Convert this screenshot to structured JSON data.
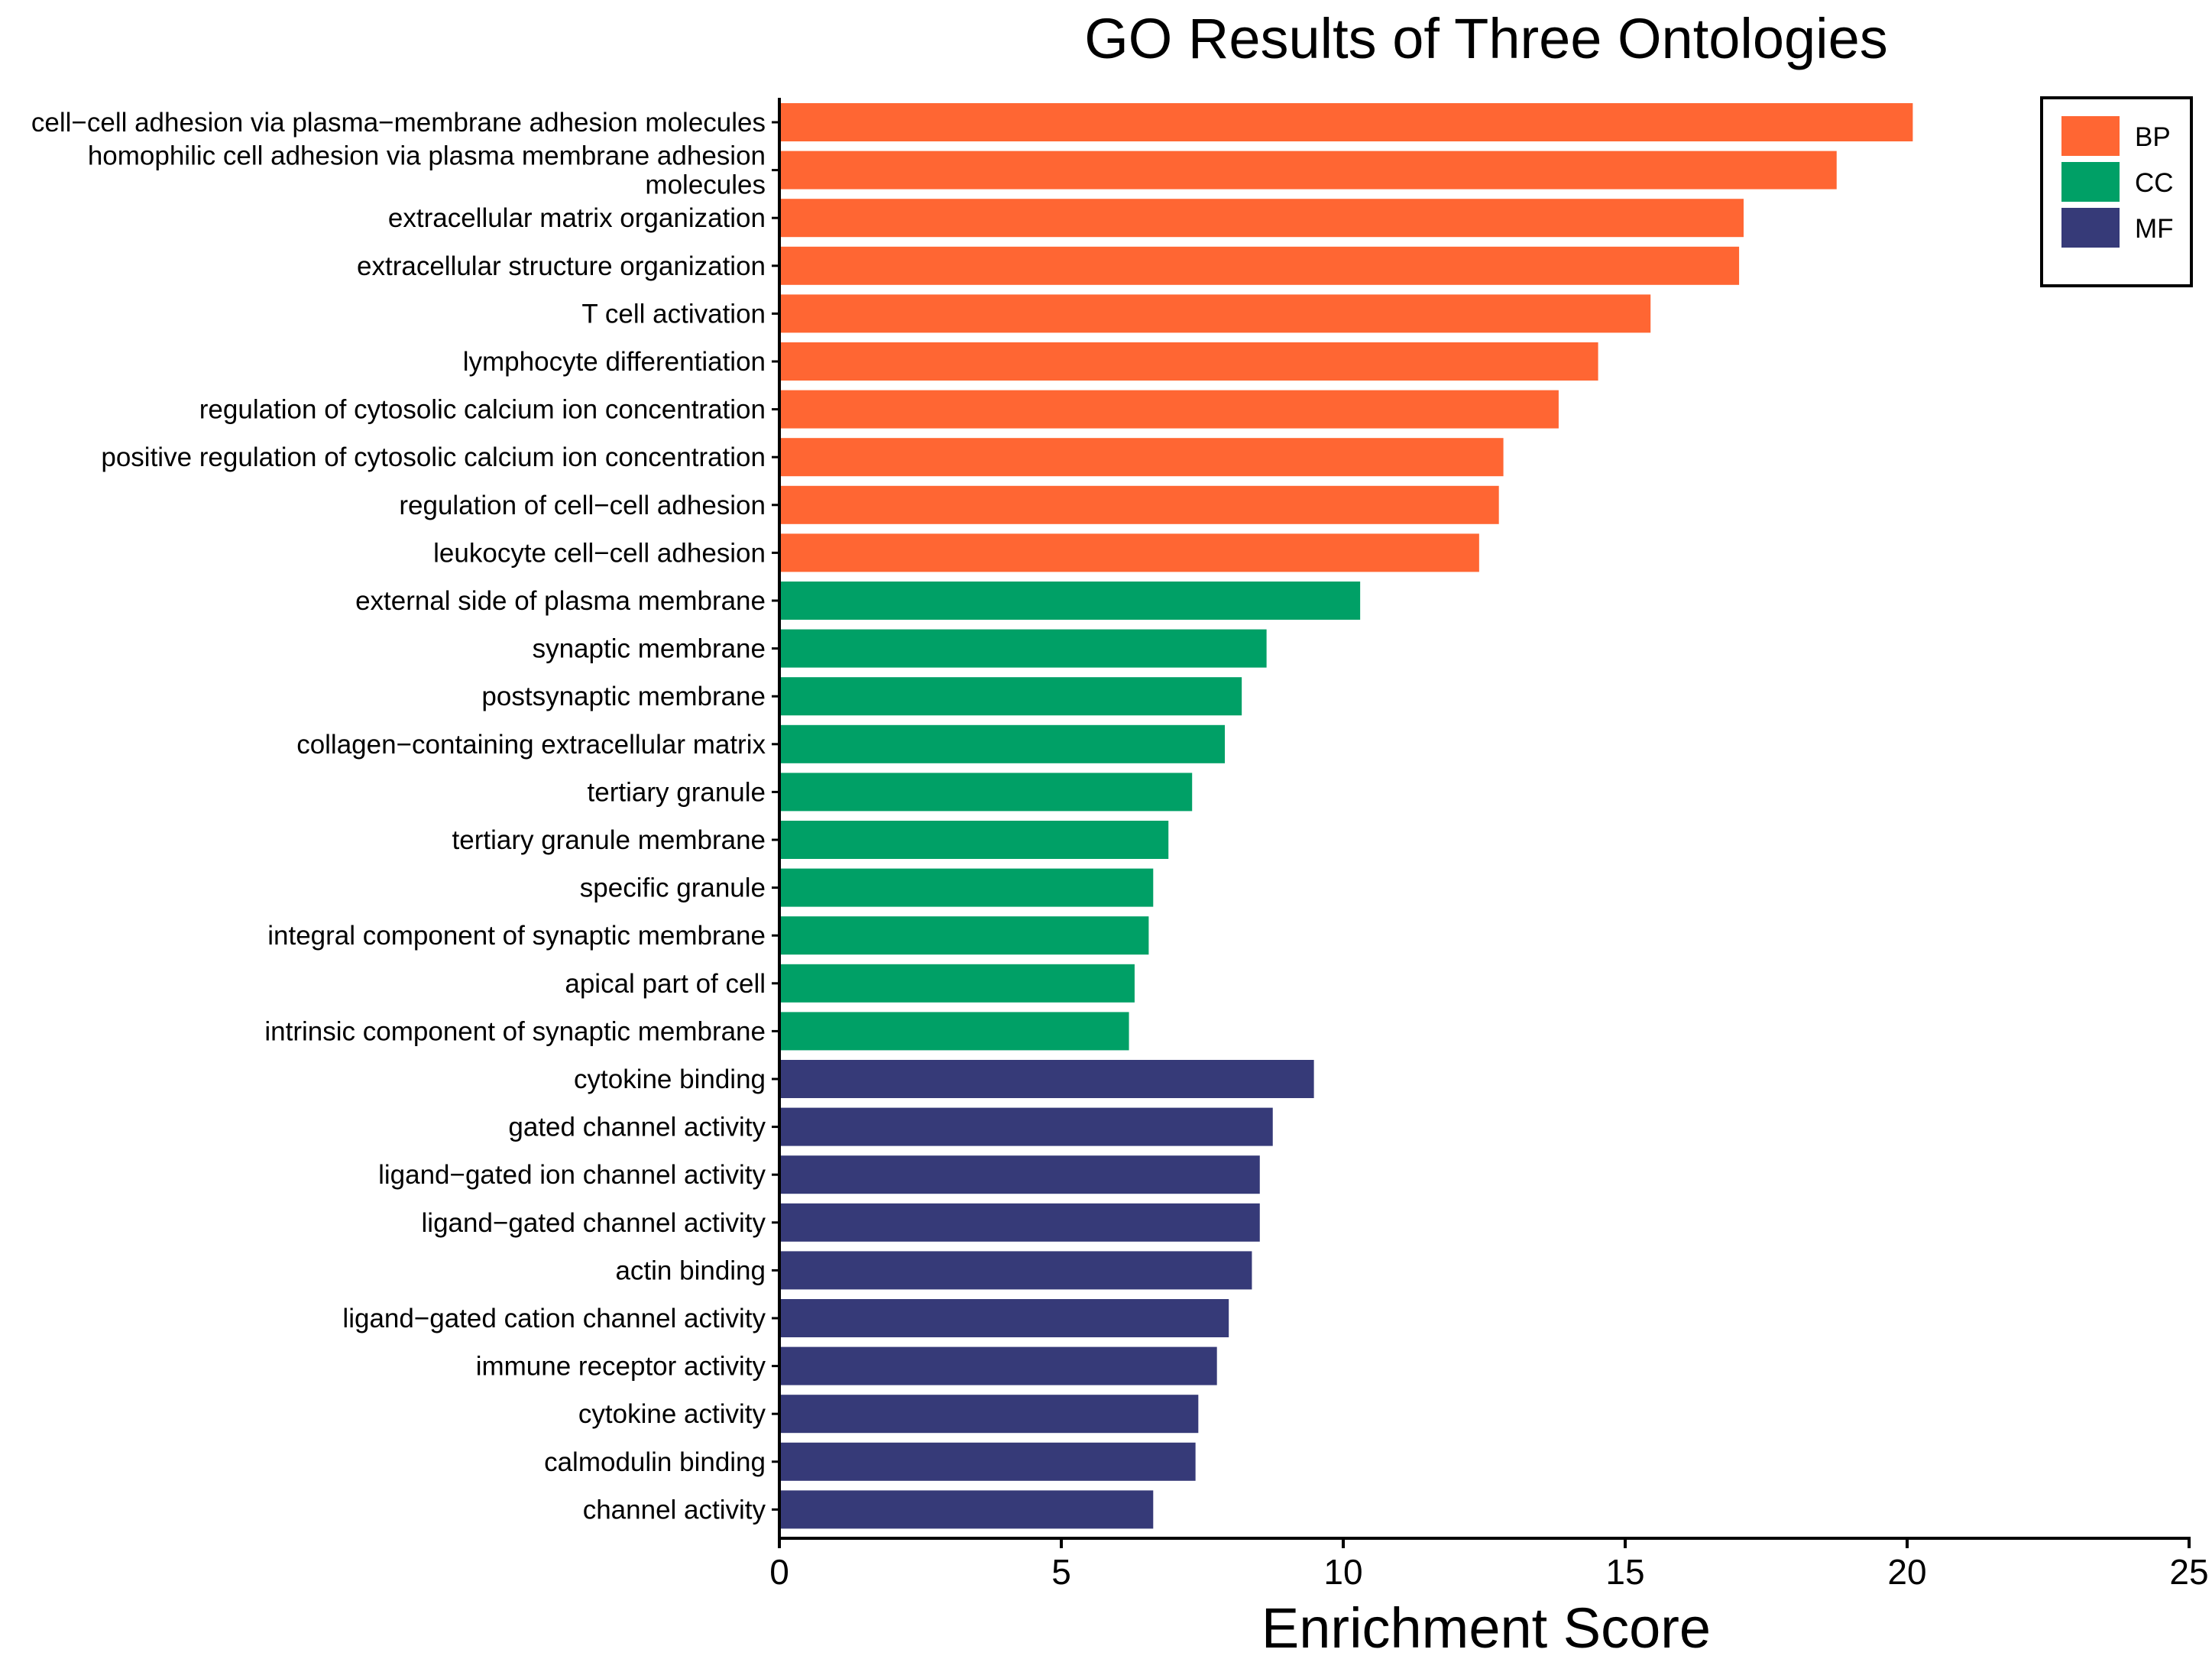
{
  "chart_data": {
    "type": "bar",
    "orientation": "horizontal",
    "title": "GO Results of Three Ontologies",
    "xlabel": "Enrichment Score",
    "ylabel": "",
    "xlim": [
      0,
      25
    ],
    "xticks": [
      0,
      5,
      10,
      15,
      20,
      25
    ],
    "grid": false,
    "legend_position": "top-right",
    "colors": {
      "BP": "#FF6633",
      "CC": "#00A066",
      "MF": "#363A78"
    },
    "legend": [
      "BP",
      "CC",
      "MF"
    ],
    "bars": [
      {
        "label": [
          "cell−cell adhesion via plasma−membrane adhesion molecules"
        ],
        "value": 20.1,
        "group": "BP"
      },
      {
        "label": [
          "homophilic cell adhesion via plasma membrane adhesion",
          "molecules"
        ],
        "value": 18.75,
        "group": "BP"
      },
      {
        "label": [
          "extracellular matrix organization"
        ],
        "value": 17.1,
        "group": "BP"
      },
      {
        "label": [
          "extracellular structure organization"
        ],
        "value": 17.02,
        "group": "BP"
      },
      {
        "label": [
          "T cell activation"
        ],
        "value": 15.45,
        "group": "BP"
      },
      {
        "label": [
          "lymphocyte differentiation"
        ],
        "value": 14.52,
        "group": "BP"
      },
      {
        "label": [
          "regulation of cytosolic calcium ion concentration"
        ],
        "value": 13.82,
        "group": "BP"
      },
      {
        "label": [
          "positive regulation of cytosolic calcium ion concentration"
        ],
        "value": 12.84,
        "group": "BP"
      },
      {
        "label": [
          "regulation of cell−cell adhesion"
        ],
        "value": 12.76,
        "group": "BP"
      },
      {
        "label": [
          "leukocyte cell−cell adhesion"
        ],
        "value": 12.41,
        "group": "BP"
      },
      {
        "label": [
          "external side of plasma membrane"
        ],
        "value": 10.3,
        "group": "CC"
      },
      {
        "label": [
          "synaptic membrane"
        ],
        "value": 8.64,
        "group": "CC"
      },
      {
        "label": [
          "postsynaptic membrane"
        ],
        "value": 8.2,
        "group": "CC"
      },
      {
        "label": [
          "collagen−containing extracellular matrix"
        ],
        "value": 7.9,
        "group": "CC"
      },
      {
        "label": [
          "tertiary granule"
        ],
        "value": 7.32,
        "group": "CC"
      },
      {
        "label": [
          "tertiary granule membrane"
        ],
        "value": 6.9,
        "group": "CC"
      },
      {
        "label": [
          "specific granule"
        ],
        "value": 6.63,
        "group": "CC"
      },
      {
        "label": [
          "integral component of synaptic membrane"
        ],
        "value": 6.55,
        "group": "CC"
      },
      {
        "label": [
          "apical part of cell"
        ],
        "value": 6.3,
        "group": "CC"
      },
      {
        "label": [
          "intrinsic component of synaptic membrane"
        ],
        "value": 6.2,
        "group": "CC"
      },
      {
        "label": [
          "cytokine binding"
        ],
        "value": 9.48,
        "group": "MF"
      },
      {
        "label": [
          "gated channel activity"
        ],
        "value": 8.75,
        "group": "MF"
      },
      {
        "label": [
          "ligand−gated ion channel activity"
        ],
        "value": 8.52,
        "group": "MF"
      },
      {
        "label": [
          "ligand−gated channel activity"
        ],
        "value": 8.52,
        "group": "MF"
      },
      {
        "label": [
          "actin binding"
        ],
        "value": 8.38,
        "group": "MF"
      },
      {
        "label": [
          "ligand−gated cation channel activity"
        ],
        "value": 7.97,
        "group": "MF"
      },
      {
        "label": [
          "immune receptor activity"
        ],
        "value": 7.76,
        "group": "MF"
      },
      {
        "label": [
          "cytokine activity"
        ],
        "value": 7.43,
        "group": "MF"
      },
      {
        "label": [
          "calmodulin binding"
        ],
        "value": 7.38,
        "group": "MF"
      },
      {
        "label": [
          "channel activity"
        ],
        "value": 6.63,
        "group": "MF"
      }
    ]
  }
}
